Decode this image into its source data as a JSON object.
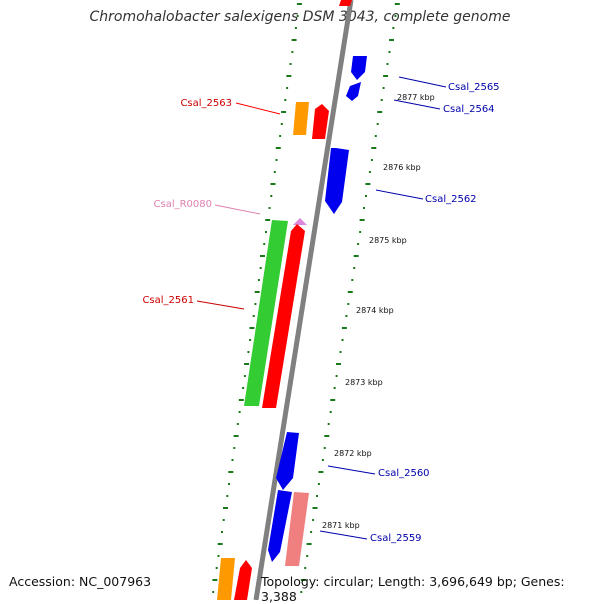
{
  "title": "Chromohalobacter salexigens DSM 3043, complete genome",
  "footer": {
    "accession": "Accession: NC_007963",
    "topology": "Topology: circular; Length: 3,696,649 bp; Genes: 3,388"
  },
  "colors": {
    "backbone": "#808080",
    "tick": "#1a7a1a",
    "cds_forward": "#ff0000",
    "cds_reverse": "#0000ee",
    "pseudo": "#f08080",
    "rrna": "#ff9900",
    "trna": "#dd88dd",
    "gene": "#33cc33",
    "label_forward": "#cc0000",
    "label_reverse": "#0000aa",
    "label_rna": "#e080b0"
  },
  "scale_labels": [
    "2877 kbp",
    "2876 kbp",
    "2875 kbp",
    "2874 kbp",
    "2873 kbp",
    "2872 kbp",
    "2871 kbp"
  ],
  "gene_labels": {
    "left": [
      "Csal_2563",
      "Csal_R0080",
      "Csal_2561"
    ],
    "right": [
      "Csal_2565",
      "Csal_2564",
      "Csal_2562",
      "Csal_2560",
      "Csal_2559"
    ]
  }
}
